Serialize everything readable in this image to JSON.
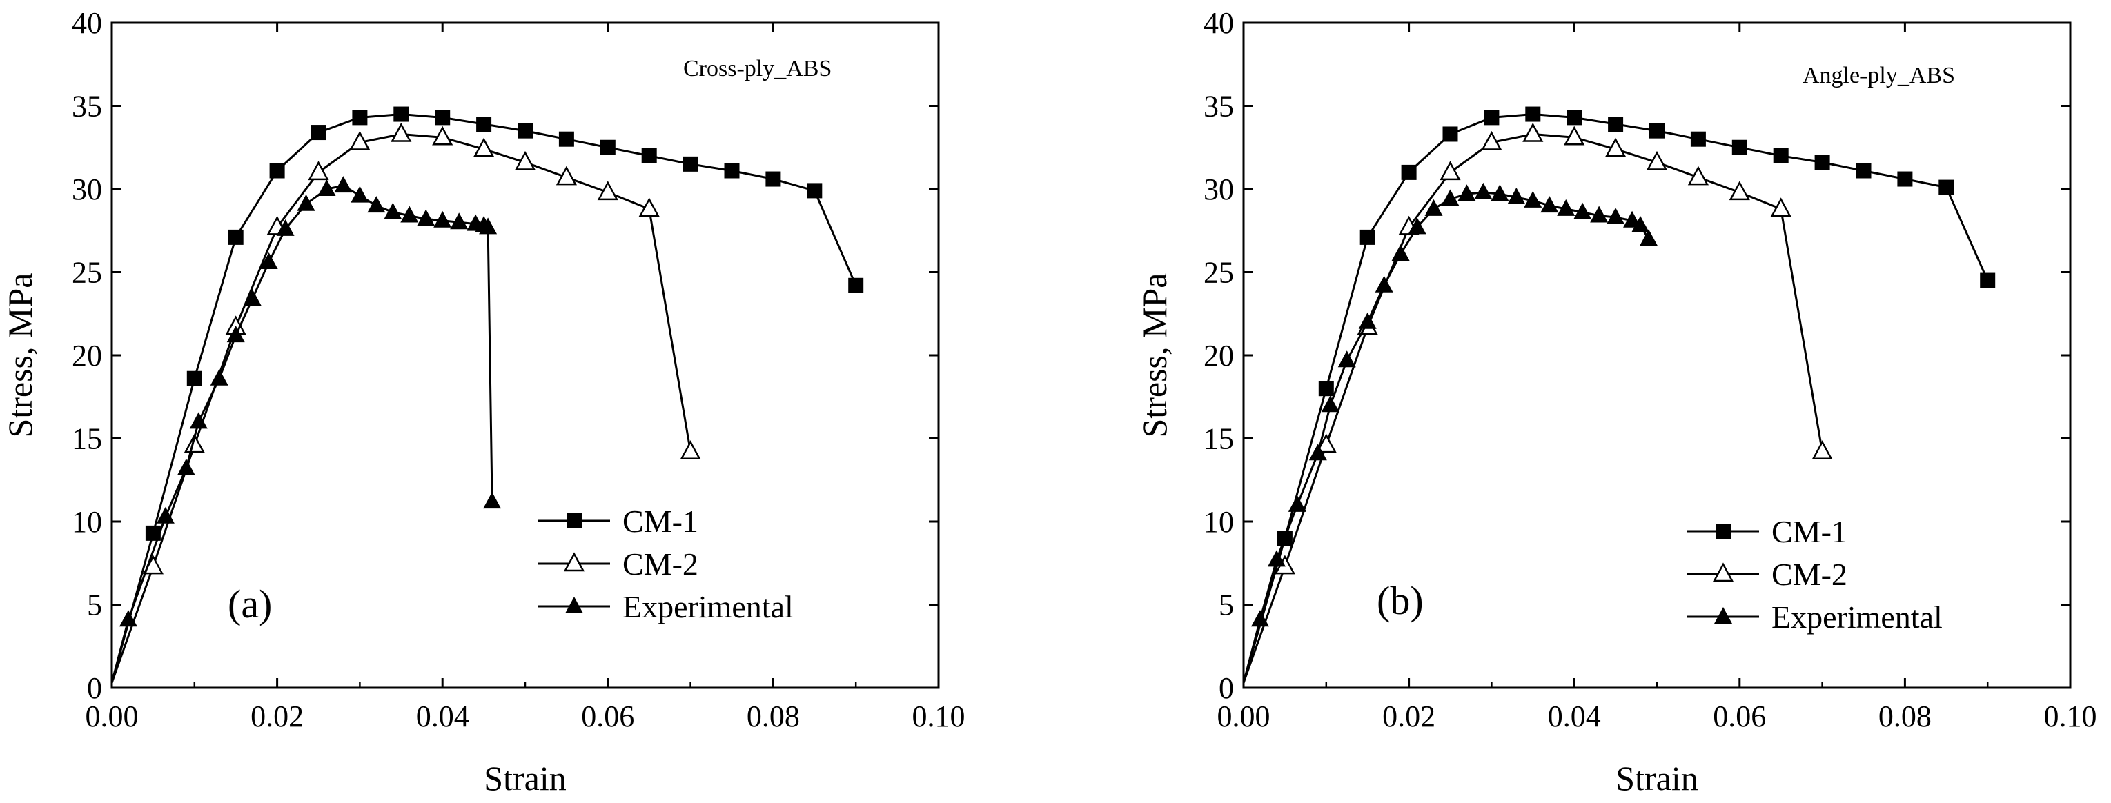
{
  "figure": {
    "description_labels": [
      "(a)",
      "(b)"
    ]
  },
  "chart_data": [
    {
      "type": "line",
      "panel": "(a)",
      "title": "Cross-ply_ABS",
      "xlabel": "Strain",
      "ylabel": "Stress,  MPa",
      "xlim": [
        0.0,
        0.1
      ],
      "ylim": [
        0,
        40
      ],
      "xticks": [
        "0.00",
        "0.02",
        "0.04",
        "0.06",
        "0.08",
        "0.10"
      ],
      "yticks": [
        "0",
        "5",
        "10",
        "15",
        "20",
        "25",
        "30",
        "35",
        "40"
      ],
      "legend_position": "bottom-center",
      "series": [
        {
          "name": "CM-1",
          "marker": "filled-square",
          "x": [
            0.0,
            0.005,
            0.01,
            0.015,
            0.02,
            0.025,
            0.03,
            0.035,
            0.04,
            0.045,
            0.05,
            0.055,
            0.06,
            0.065,
            0.07,
            0.075,
            0.08,
            0.085,
            0.09
          ],
          "y": [
            0.3,
            9.3,
            18.6,
            27.1,
            31.1,
            33.4,
            34.3,
            34.5,
            34.3,
            33.9,
            33.5,
            33.0,
            32.5,
            32.0,
            31.5,
            31.1,
            30.6,
            29.9,
            24.2
          ]
        },
        {
          "name": "CM-2",
          "marker": "open-triangle",
          "x": [
            0.0,
            0.005,
            0.01,
            0.015,
            0.02,
            0.025,
            0.03,
            0.035,
            0.04,
            0.045,
            0.05,
            0.055,
            0.06,
            0.065,
            0.07
          ],
          "y": [
            0.3,
            7.3,
            14.6,
            21.7,
            27.7,
            31.0,
            32.8,
            33.3,
            33.1,
            32.4,
            31.6,
            30.7,
            29.8,
            28.8,
            14.2
          ]
        },
        {
          "name": "Experimental",
          "marker": "filled-triangle",
          "x": [
            0.0,
            0.002,
            0.0065,
            0.009,
            0.0105,
            0.013,
            0.015,
            0.017,
            0.019,
            0.021,
            0.0235,
            0.026,
            0.028,
            0.03,
            0.032,
            0.034,
            0.036,
            0.038,
            0.04,
            0.042,
            0.044,
            0.045,
            0.0455,
            0.046
          ],
          "y": [
            0.3,
            4.1,
            10.3,
            13.2,
            16.0,
            18.6,
            21.2,
            23.4,
            25.6,
            27.6,
            29.1,
            30.0,
            30.2,
            29.6,
            29.0,
            28.6,
            28.4,
            28.2,
            28.1,
            28.0,
            27.9,
            27.8,
            27.7,
            11.2
          ]
        }
      ]
    },
    {
      "type": "line",
      "panel": "(b)",
      "title": "Angle-ply_ABS",
      "xlabel": "Strain",
      "ylabel": "Stress,  MPa",
      "xlim": [
        0.0,
        0.1
      ],
      "ylim": [
        0,
        40
      ],
      "xticks": [
        "0.00",
        "0.02",
        "0.04",
        "0.06",
        "0.08",
        "0.10"
      ],
      "yticks": [
        "0",
        "5",
        "10",
        "15",
        "20",
        "25",
        "30",
        "35",
        "40"
      ],
      "legend_position": "bottom-center",
      "series": [
        {
          "name": "CM-1",
          "marker": "filled-square",
          "x": [
            0.0,
            0.005,
            0.01,
            0.015,
            0.02,
            0.025,
            0.03,
            0.035,
            0.04,
            0.045,
            0.05,
            0.055,
            0.06,
            0.065,
            0.07,
            0.075,
            0.08,
            0.085,
            0.09
          ],
          "y": [
            0.3,
            9.0,
            18.0,
            27.1,
            31.0,
            33.3,
            34.3,
            34.5,
            34.3,
            33.9,
            33.5,
            33.0,
            32.5,
            32.0,
            31.6,
            31.1,
            30.6,
            30.1,
            24.5
          ]
        },
        {
          "name": "CM-2",
          "marker": "open-triangle",
          "x": [
            0.0,
            0.005,
            0.01,
            0.015,
            0.02,
            0.025,
            0.03,
            0.035,
            0.04,
            0.045,
            0.05,
            0.055,
            0.06,
            0.065,
            0.07
          ],
          "y": [
            0.3,
            7.3,
            14.6,
            21.7,
            27.7,
            31.0,
            32.8,
            33.3,
            33.1,
            32.4,
            31.6,
            30.7,
            29.8,
            28.8,
            14.2
          ]
        },
        {
          "name": "Experimental",
          "marker": "filled-triangle",
          "x": [
            0.0,
            0.002,
            0.004,
            0.0065,
            0.009,
            0.0105,
            0.0125,
            0.015,
            0.017,
            0.019,
            0.021,
            0.023,
            0.025,
            0.027,
            0.029,
            0.031,
            0.033,
            0.035,
            0.037,
            0.039,
            0.041,
            0.043,
            0.045,
            0.047,
            0.048,
            0.049
          ],
          "y": [
            0.3,
            4.1,
            7.7,
            11.0,
            14.1,
            17.0,
            19.7,
            22.0,
            24.2,
            26.1,
            27.7,
            28.8,
            29.4,
            29.7,
            29.8,
            29.7,
            29.5,
            29.3,
            29.0,
            28.8,
            28.6,
            28.4,
            28.3,
            28.1,
            27.8,
            27.0
          ]
        }
      ]
    }
  ]
}
